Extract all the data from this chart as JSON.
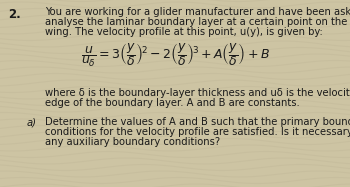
{
  "bg_color": "#cdc4a3",
  "text_color": "#1a1a1a",
  "question_number": "2.",
  "line1": "You are working for a glider manufacturer and have been asked to",
  "line2": "analyse the laminar boundary layer at a certain point on the smooth",
  "line3": "wing. The velocity profile at this point, u(y), is given by:",
  "equation": "$\\dfrac{u}{u_\\delta} = 3\\left(\\dfrac{y}{\\delta}\\right)^{\\!2} - 2\\left(\\dfrac{y}{\\delta}\\right)^{\\!3} + A\\left(\\dfrac{y}{\\delta}\\right) + B$",
  "where1": "where δ is the boundary-layer thickness and uδ is the velocity at the",
  "where2": "edge of the boundary layer. A and B are constants.",
  "parta_label": "a)",
  "parta1": "Determine the values of A and B such that the primary boundary",
  "parta2": "conditions for the velocity profile are satisfied. Is it necessary to apply",
  "parta3": "any auxiliary boundary conditions?",
  "font_size_body": 7.2,
  "font_size_eq": 9.0,
  "font_size_num": 8.5
}
